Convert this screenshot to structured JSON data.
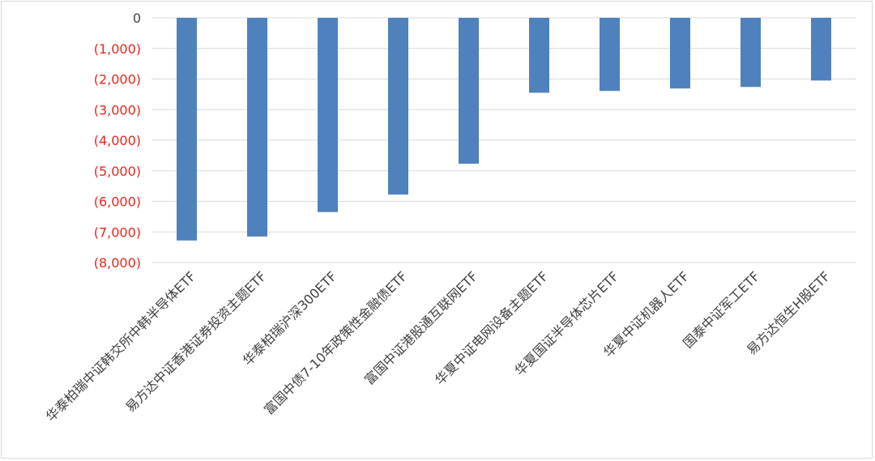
{
  "chart_data": {
    "type": "bar",
    "title": "",
    "xlabel": "",
    "ylabel": "",
    "categories": [
      "华泰柏瑞中证韩交所中韩半导体ETF",
      "易方达中证香港证券投资主题ETF",
      "华泰柏瑞沪深300ETF",
      "富国中债7-10年政策性金融债ETF",
      "富国中证港股通互联网ETF",
      "华夏中证电网设备主题ETF",
      "华夏国证半导体芯片ETF",
      "华夏中证机器人ETF",
      "国泰中证军工ETF",
      "易方达恒生H股ETF"
    ],
    "series": [
      {
        "values": [
          -7280,
          -7150,
          -6350,
          -5780,
          -4770,
          -2450,
          -2390,
          -2310,
          -2260,
          -2050
        ]
      }
    ],
    "ylim": [
      -8000,
      0
    ],
    "yticks": [
      0,
      -1000,
      -2000,
      -3000,
      -4000,
      -5000,
      -6000,
      -7000,
      -8000
    ],
    "ytick_labels": [
      "0",
      "(1,000)",
      "(2,000)",
      "(3,000)",
      "(4,000)",
      "(5,000)",
      "(6,000)",
      "(7,000)",
      "(8,000)"
    ],
    "grid": true,
    "legend": "none",
    "colors": {
      "bar": "#4f81bd",
      "grid": "#d9d9d9",
      "negative_tick": "#e8261e",
      "zero_tick": "#404040",
      "category_text": "#404040"
    }
  }
}
